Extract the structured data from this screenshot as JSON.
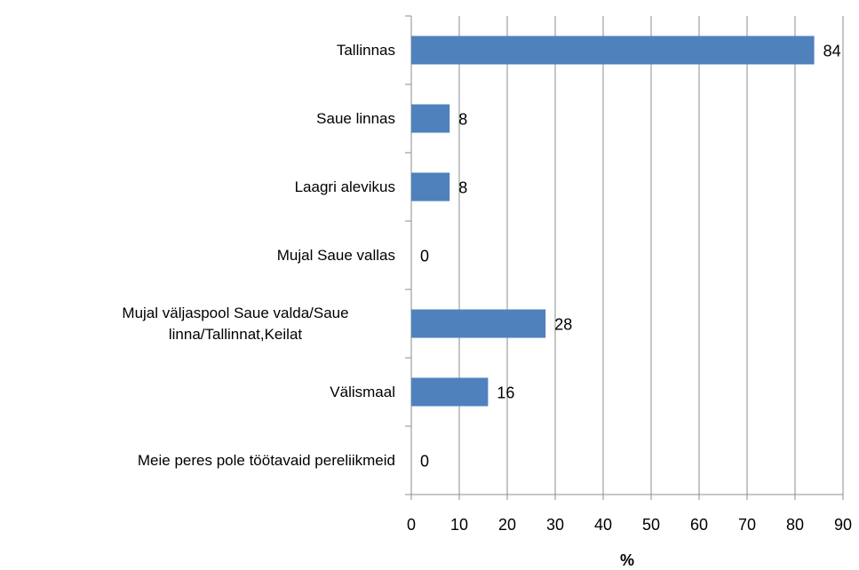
{
  "chart_data": {
    "type": "barh",
    "categories": [
      "Tallinnas",
      "Saue linnas",
      "Laagri alevikus",
      "Mujal Saue vallas",
      "Mujal väljaspool Saue valda/Saue linna/Tallinnat,Keilat",
      "Välismaal",
      "Meie peres pole töötavaid pereliikmeid"
    ],
    "values": [
      84,
      8,
      8,
      0,
      28,
      16,
      0
    ],
    "color": "#4f81bd",
    "xlabel": "%",
    "xlim": [
      0,
      90
    ],
    "xticks": [
      0,
      10,
      20,
      30,
      40,
      50,
      60,
      70,
      80,
      90
    ],
    "grid": true
  }
}
